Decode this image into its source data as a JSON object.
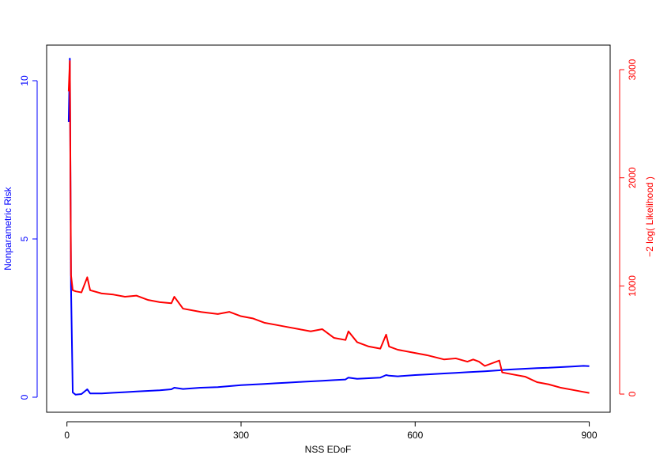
{
  "chart_data": {
    "type": "line",
    "x_label": "NSS EDoF",
    "y_label": "Nonparametric Risk",
    "y2_label": "−2 log( Likelihood )",
    "x": [
      3,
      5,
      7,
      10,
      15,
      25,
      35,
      40,
      60,
      80,
      100,
      120,
      140,
      160,
      180,
      185,
      200,
      230,
      260,
      280,
      300,
      320,
      340,
      360,
      380,
      400,
      420,
      440,
      460,
      480,
      485,
      500,
      520,
      540,
      550,
      555,
      570,
      600,
      620,
      650,
      670,
      690,
      700,
      710,
      720,
      745,
      750,
      770,
      790,
      810,
      830,
      850,
      870,
      890,
      900
    ],
    "series": [
      {
        "name": "Nonparametric Risk",
        "color": "#0000ff",
        "axis": "y",
        "values": [
          8.7,
          10.7,
          3.5,
          0.15,
          0.08,
          0.1,
          0.25,
          0.12,
          0.12,
          0.14,
          0.16,
          0.18,
          0.2,
          0.22,
          0.25,
          0.3,
          0.26,
          0.3,
          0.32,
          0.35,
          0.38,
          0.4,
          0.42,
          0.44,
          0.46,
          0.48,
          0.5,
          0.52,
          0.54,
          0.56,
          0.62,
          0.58,
          0.6,
          0.62,
          0.7,
          0.68,
          0.66,
          0.7,
          0.72,
          0.75,
          0.77,
          0.79,
          0.8,
          0.81,
          0.82,
          0.85,
          0.86,
          0.88,
          0.9,
          0.92,
          0.93,
          0.95,
          0.97,
          0.99,
          0.98
        ]
      },
      {
        "name": "−2 log( Likelihood )",
        "color": "#ff0000",
        "axis": "y2",
        "values": [
          2800,
          3080,
          1100,
          960,
          950,
          940,
          1080,
          960,
          930,
          920,
          900,
          910,
          870,
          850,
          840,
          900,
          790,
          760,
          740,
          760,
          720,
          700,
          660,
          640,
          620,
          600,
          580,
          600,
          520,
          500,
          580,
          480,
          440,
          420,
          550,
          440,
          410,
          380,
          360,
          320,
          330,
          300,
          320,
          300,
          260,
          310,
          200,
          180,
          160,
          110,
          90,
          60,
          40,
          20,
          10
        ]
      }
    ],
    "xlim": [
      -35,
      936
    ],
    "xticks": [
      0,
      300,
      600,
      900
    ],
    "ylim": [
      -0.475,
      11.125
    ],
    "yticks": [
      0,
      5,
      10
    ],
    "y2lim": [
      -168,
      3227
    ],
    "y2ticks": [
      0,
      1000,
      2000,
      3000
    ]
  }
}
